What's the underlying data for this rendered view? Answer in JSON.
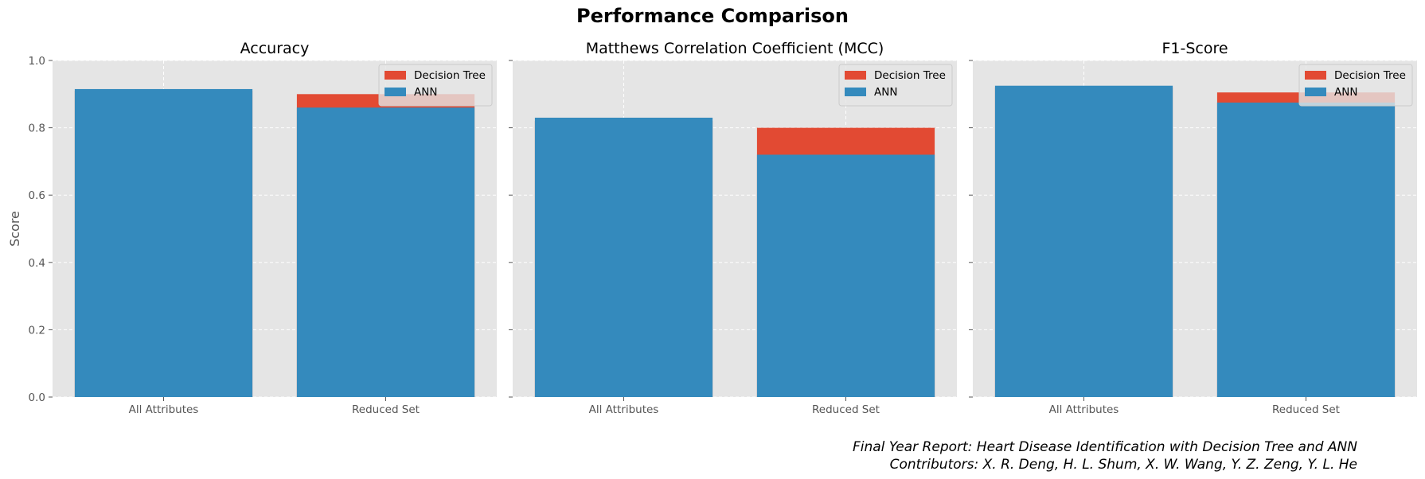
{
  "chart_data": {
    "type": "bar",
    "title": "Performance Comparison",
    "ylabel": "Score",
    "ylim": [
      0,
      1.0
    ],
    "yticks": [
      "0.0",
      "0.2",
      "0.4",
      "0.6",
      "0.8",
      "1.0"
    ],
    "ytick_values": [
      0,
      0.2,
      0.4,
      0.6,
      0.8,
      1.0
    ],
    "grid": true,
    "legend_position": "top-right",
    "categories": [
      "All Attributes",
      "Reduced Set"
    ],
    "series_names": [
      "Decision Tree",
      "ANN"
    ],
    "colors": {
      "decision_tree": "#E24A33",
      "ann": "#348ABD",
      "panel_bg": "#E5E5E5",
      "grid": "#FFFFFF"
    },
    "panels": [
      {
        "title": "Accuracy",
        "series": [
          {
            "name": "Decision Tree",
            "values": [
              0.91,
              0.9
            ]
          },
          {
            "name": "ANN",
            "values": [
              0.915,
              0.86
            ]
          }
        ]
      },
      {
        "title": "Matthews Correlation Coefficient (MCC)",
        "series": [
          {
            "name": "Decision Tree",
            "values": [
              0.82,
              0.8
            ]
          },
          {
            "name": "ANN",
            "values": [
              0.83,
              0.72
            ]
          }
        ]
      },
      {
        "title": "F1-Score",
        "series": [
          {
            "name": "Decision Tree",
            "values": [
              0.92,
              0.905
            ]
          },
          {
            "name": "ANN",
            "values": [
              0.925,
              0.875
            ]
          }
        ]
      }
    ]
  },
  "footer": {
    "line1": "Final Year Report: Heart Disease Identification with Decision Tree and ANN",
    "line2": "Contributors: X. R. Deng, H. L. Shum, X. W. Wang, Y. Z. Zeng, Y. L. He"
  }
}
